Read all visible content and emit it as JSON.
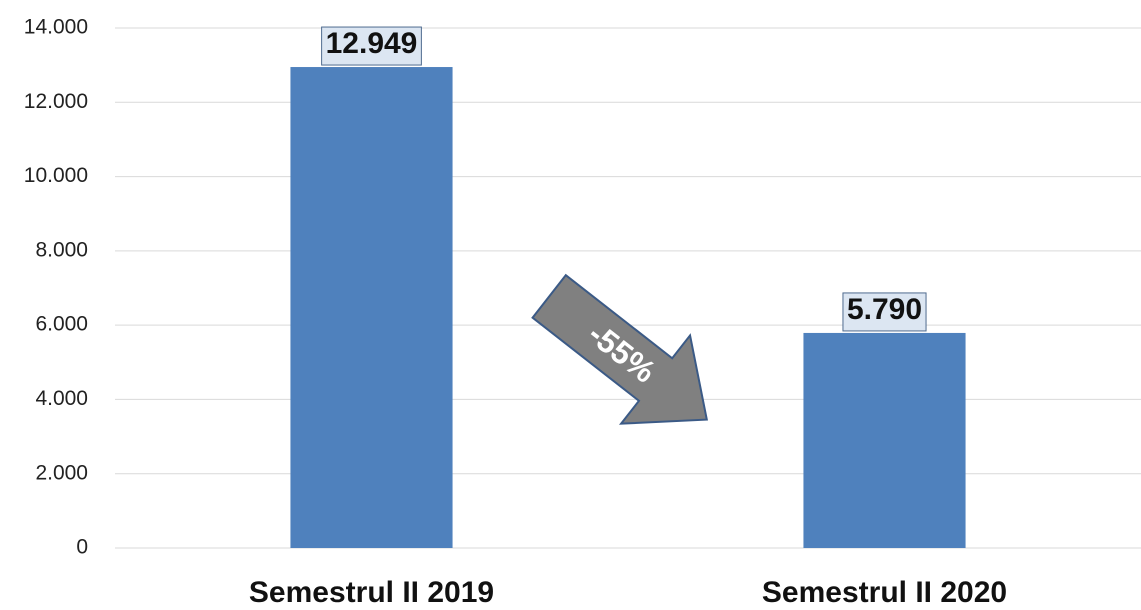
{
  "chart_data": {
    "type": "bar",
    "categories": [
      "Semestrul II 2019",
      "Semestrul II 2020"
    ],
    "values": [
      12949,
      5790
    ],
    "value_labels": [
      "12.949",
      "5.790"
    ],
    "color": "#4f81bd",
    "ylim": [
      0,
      14000
    ],
    "yticks": [
      0,
      {
        "value": 2000,
        "label": "2.000"
      },
      {
        "value": 4000,
        "label": "4.000"
      },
      {
        "value": 6000,
        "label": "6.000"
      },
      {
        "value": 8000,
        "label": "8.000"
      },
      {
        "value": 10000,
        "label": "10.000"
      },
      {
        "value": 12000,
        "label": "12.000"
      },
      {
        "value": 14000,
        "label": "14.000"
      }
    ],
    "grid": true,
    "annotation": "-55%"
  }
}
